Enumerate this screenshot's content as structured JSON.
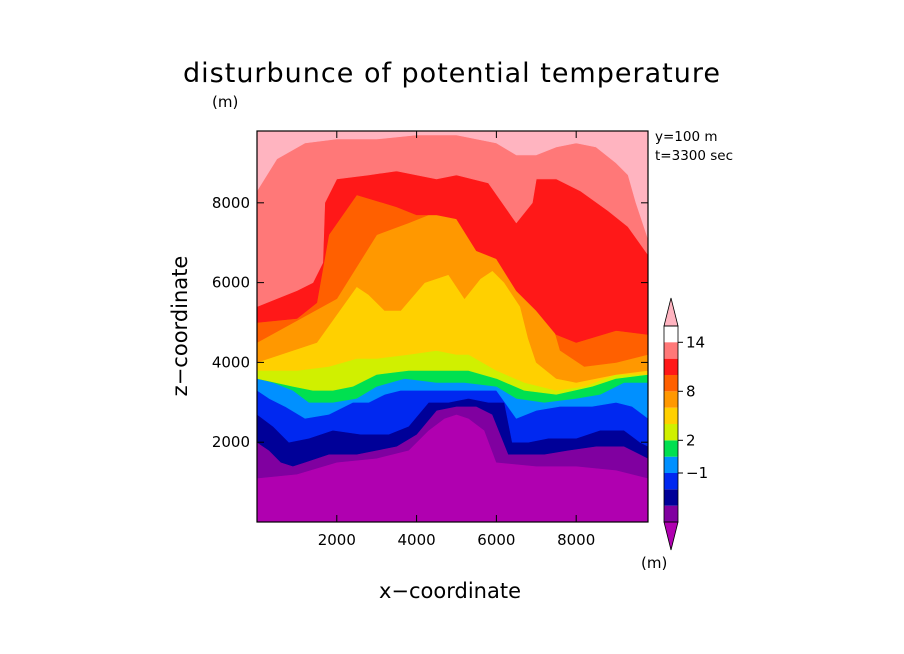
{
  "chart_data": {
    "type": "contour",
    "title": "disturbunce of potential temperature",
    "title_unit": "(m)",
    "info": [
      "y=100 m",
      "t=3300 sec"
    ],
    "xlabel": "x−coordinate",
    "ylabel": "z−coordinate",
    "xlim": [
      0,
      9800
    ],
    "ylim": [
      0,
      9800
    ],
    "xticks": [
      2000,
      4000,
      6000,
      8000
    ],
    "yticks": [
      2000,
      4000,
      6000,
      8000
    ],
    "xticklabels": [
      "2000",
      "4000",
      "6000",
      "8000"
    ],
    "yticklabels": [
      "2000",
      "4000",
      "6000",
      "8000"
    ],
    "colorbar": {
      "unit": "(m)",
      "colors": [
        "#b000b0",
        "#8000a0",
        "#000098",
        "#0028f0",
        "#0090ff",
        "#00e050",
        "#d0f000",
        "#ffd000",
        "#ff9800",
        "#ff6000",
        "#ff1818",
        "#ff7878",
        "#ffb4c0"
      ],
      "labels": [
        {
          "text": "−1",
          "band": 4
        },
        {
          "text": "2",
          "band": 6
        },
        {
          "text": "8",
          "band": 9
        },
        {
          "text": "14",
          "band": 12
        }
      ]
    },
    "fields": [
      {
        "level": 12,
        "x": [
          0,
          9800,
          9800,
          9500,
          9300,
          9000,
          8500,
          8000,
          7500,
          7000,
          6500,
          6000,
          5500,
          5000,
          4000,
          3000,
          2000,
          1200,
          500,
          0
        ],
        "y": [
          9800,
          9800,
          7100,
          8000,
          8700,
          9000,
          9400,
          9500,
          9400,
          9200,
          9200,
          9500,
          9600,
          9700,
          9700,
          9600,
          9600,
          9500,
          9100,
          8300
        ]
      },
      {
        "level": 11,
        "x": [
          0,
          9800,
          9800,
          9300,
          8800,
          8100,
          7500,
          7000,
          6900,
          6500,
          5800,
          5000,
          4500,
          3500,
          2800,
          2000,
          1700,
          1650,
          1400,
          1000,
          500,
          0
        ],
        "y": [
          9800,
          9800,
          6700,
          7400,
          7800,
          8300,
          8600,
          8600,
          8000,
          7500,
          8500,
          8700,
          8600,
          8800,
          8700,
          8600,
          8000,
          6500,
          6000,
          5800,
          5600,
          5400
        ]
      },
      {
        "level": 10,
        "x": [
          0,
          9800,
          9800,
          9000,
          8000,
          7500,
          7000,
          6500,
          6000,
          5500,
          5000,
          4500,
          4000,
          3500,
          2500,
          1800,
          1500,
          1000,
          0
        ],
        "y": [
          9800,
          9800,
          4700,
          4800,
          4500,
          4700,
          5300,
          5800,
          6600,
          6800,
          7600,
          7700,
          7700,
          7900,
          8200,
          7200,
          5500,
          5100,
          5000
        ]
      },
      {
        "level": 9,
        "x": [
          0,
          9800,
          9800,
          9000,
          8200,
          7600,
          7400,
          8000,
          8600,
          8700,
          8000,
          6800,
          6200,
          5600,
          5200,
          4800,
          4300,
          3800,
          3000,
          2500,
          2000,
          0
        ],
        "y": [
          9800,
          9800,
          4200,
          4000,
          3900,
          4300,
          5000,
          5500,
          6000,
          7000,
          8000,
          8400,
          7800,
          7400,
          7500,
          7700,
          7700,
          7500,
          7200,
          6400,
          5600,
          4500
        ]
      },
      {
        "level": 8,
        "x": [
          0,
          9800,
          9800,
          9000,
          8000,
          7500,
          7000,
          6800,
          6600,
          6200,
          5900,
          5600,
          5200,
          4800,
          4200,
          3600,
          3200,
          2800,
          2500,
          1500,
          0
        ],
        "y": [
          9800,
          9800,
          3800,
          3700,
          3500,
          3600,
          4000,
          4600,
          5400,
          6000,
          6300,
          6100,
          5600,
          6200,
          6000,
          5300,
          5300,
          5700,
          5900,
          4500,
          4000
        ]
      },
      {
        "level": 7,
        "x": [
          0,
          9800,
          9800,
          9000,
          8200,
          7500,
          6700,
          6000,
          5300,
          5000,
          4500,
          3800,
          3000,
          2500,
          1800,
          1000,
          0
        ],
        "y": [
          9800,
          9800,
          3700,
          3700,
          3400,
          3300,
          3500,
          3800,
          4200,
          4200,
          4300,
          4200,
          4100,
          4100,
          3900,
          3800,
          3800
        ]
      },
      {
        "level": 6,
        "x": [
          0,
          9800,
          9800,
          9000,
          8400,
          7500,
          6700,
          6000,
          5300,
          4500,
          3800,
          3000,
          2400,
          1900,
          1400,
          900,
          0
        ],
        "y": [
          9800,
          9800,
          3700,
          3600,
          3400,
          3200,
          3300,
          3600,
          3800,
          3800,
          3800,
          3700,
          3400,
          3300,
          3300,
          3400,
          3600
        ]
      },
      {
        "level": 5,
        "x": [
          0,
          9800,
          9800,
          9200,
          8600,
          8000,
          7200,
          6500,
          6000,
          5200,
          4500,
          3700,
          3000,
          2500,
          1900,
          1300,
          900,
          400,
          0
        ],
        "y": [
          9800,
          9800,
          3500,
          3500,
          3200,
          3100,
          3000,
          3100,
          3400,
          3500,
          3500,
          3600,
          3400,
          3100,
          3000,
          3000,
          3300,
          3500,
          3600
        ]
      },
      {
        "level": 4,
        "x": [
          0,
          9800,
          9800,
          9400,
          9000,
          8400,
          7600,
          7000,
          6500,
          6000,
          5500,
          5000,
          4600,
          4000,
          3600,
          3200,
          2800,
          2400,
          1800,
          1200,
          700,
          300,
          0
        ],
        "y": [
          9800,
          9800,
          2600,
          2900,
          3000,
          2900,
          2900,
          2800,
          2600,
          3300,
          3300,
          3300,
          3300,
          3300,
          3300,
          3200,
          3000,
          3000,
          2700,
          2600,
          2900,
          3100,
          3300
        ]
      },
      {
        "level": 3,
        "x": [
          0,
          9800,
          9800,
          9600,
          9200,
          8600,
          8000,
          7300,
          6800,
          6400,
          6200,
          5800,
          5300,
          4800,
          4300,
          3800,
          3300,
          2600,
          1900,
          1300,
          800,
          400,
          0
        ],
        "y": [
          9800,
          9800,
          1900,
          2000,
          2300,
          2300,
          2100,
          2100,
          2000,
          2000,
          3000,
          3000,
          3100,
          3000,
          3000,
          2400,
          2200,
          2200,
          2300,
          2100,
          2000,
          2400,
          2700
        ]
      },
      {
        "level": 2,
        "x": [
          0,
          9800,
          9800,
          9200,
          8500,
          7800,
          7200,
          6700,
          6300,
          5900,
          5500,
          5000,
          4500,
          4000,
          3500,
          3000,
          2500,
          1800,
          1200,
          900,
          600,
          300,
          0
        ],
        "y": [
          9800,
          9800,
          1600,
          1900,
          1900,
          1800,
          1700,
          1700,
          1700,
          2700,
          2900,
          2900,
          2800,
          2200,
          1900,
          1800,
          1700,
          1700,
          1500,
          1400,
          1500,
          1800,
          2000
        ]
      },
      {
        "level": 1,
        "x": [
          0,
          9800,
          9800,
          9000,
          8000,
          7000,
          6000,
          5700,
          5300,
          5000,
          4700,
          4300,
          3800,
          3000,
          2000,
          1000,
          0
        ],
        "y": [
          9800,
          9800,
          1100,
          1300,
          1400,
          1400,
          1500,
          2300,
          2600,
          2700,
          2600,
          2300,
          1800,
          1600,
          1500,
          1200,
          1100
        ]
      }
    ]
  }
}
